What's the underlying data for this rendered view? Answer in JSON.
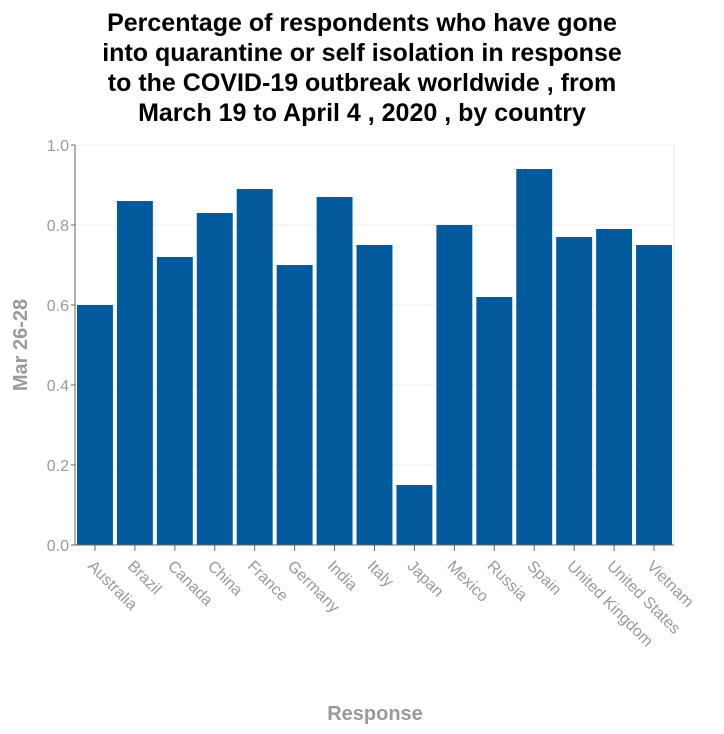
{
  "chart_data": {
    "type": "bar",
    "title": "Percentage of respondents who have gone into quarantine or self isolation in response to the COVID-19 outbreak worldwide , from March 19 to April 4 , 2020 , by country",
    "title_lines": [
      "Percentage of respondents who have gone",
      "into quarantine or self isolation in response",
      "to the COVID-19 outbreak worldwide , from",
      "March 19 to April 4 , 2020 , by country"
    ],
    "xlabel": "Response",
    "ylabel": "Mar 26-28",
    "categories": [
      "Australia",
      "Brazil",
      "Canada",
      "China",
      "France",
      "Germany",
      "India",
      "Italy",
      "Japan",
      "Mexico",
      "Russia",
      "Spain",
      "United Kingdom",
      "United States",
      "Vietnam"
    ],
    "values": [
      0.6,
      0.86,
      0.72,
      0.83,
      0.89,
      0.7,
      0.87,
      0.75,
      0.15,
      0.8,
      0.62,
      0.94,
      0.77,
      0.79,
      0.75
    ],
    "ylim": [
      0,
      1.0
    ],
    "yticks": [
      "0.0",
      "0.2",
      "0.4",
      "0.6",
      "0.8",
      "1.0"
    ],
    "grid": true,
    "bar_color": "#005a9c"
  }
}
